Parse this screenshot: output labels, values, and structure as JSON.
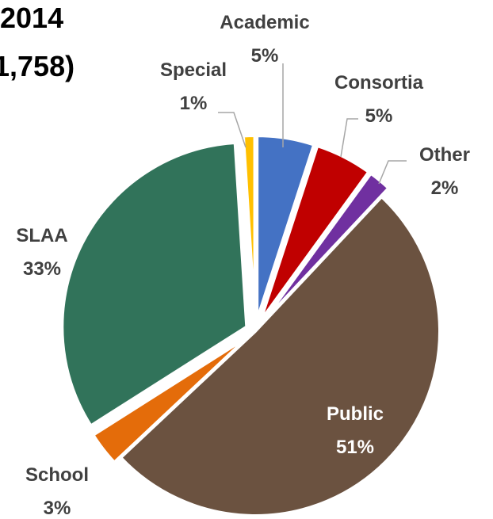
{
  "title": [
    "2014",
    "1,758)"
  ],
  "chart_data": {
    "type": "pie",
    "title": "",
    "series": [
      {
        "label": "Academic",
        "value": 5,
        "value_label": "5%",
        "color": "#4472C4"
      },
      {
        "label": "Consortia",
        "value": 5,
        "value_label": "5%",
        "color": "#C00000"
      },
      {
        "label": "Other",
        "value": 2,
        "value_label": "2%",
        "color": "#7030A0"
      },
      {
        "label": "Public",
        "value": 51,
        "value_label": "51%",
        "color": "#6B5240"
      },
      {
        "label": "School",
        "value": 3,
        "value_label": "3%",
        "color": "#E46C0A"
      },
      {
        "label": "SLAA",
        "value": 33,
        "value_label": "33%",
        "color": "#31735A"
      },
      {
        "label": "Special",
        "value": 1,
        "value_label": "1%",
        "color": "#FFC000"
      }
    ],
    "label_colors": {
      "dark": "#404040",
      "light": "#ffffff"
    },
    "legend": "none"
  }
}
